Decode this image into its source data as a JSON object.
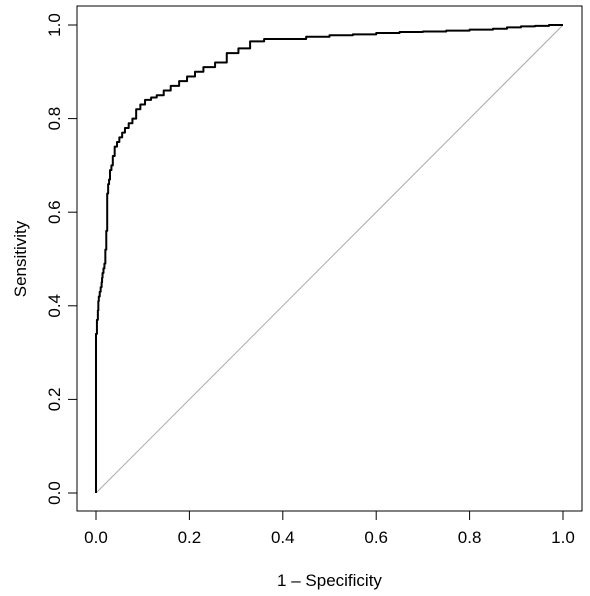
{
  "chart_data": {
    "type": "line",
    "title": "",
    "xlabel": "1 – Specificity",
    "ylabel": "Sensitivity",
    "xlim": [
      0,
      1
    ],
    "ylim": [
      0,
      1
    ],
    "x_ticks": [
      0.0,
      0.2,
      0.4,
      0.6,
      0.8,
      1.0
    ],
    "y_ticks": [
      0.0,
      0.2,
      0.4,
      0.6,
      0.8,
      1.0
    ],
    "x_tick_labels": [
      "0.0",
      "0.2",
      "0.4",
      "0.6",
      "0.8",
      "1.0"
    ],
    "y_tick_labels": [
      "0.0",
      "0.2",
      "0.4",
      "0.6",
      "0.8",
      "1.0"
    ],
    "grid": false,
    "legend": "none",
    "series": [
      {
        "role": "roc-curve",
        "color": "#000000",
        "x": [
          0.0,
          0.0,
          0.0,
          0.002,
          0.004,
          0.005,
          0.006,
          0.008,
          0.01,
          0.012,
          0.013,
          0.014,
          0.016,
          0.018,
          0.02,
          0.022,
          0.024,
          0.026,
          0.028,
          0.03,
          0.033,
          0.036,
          0.04,
          0.045,
          0.05,
          0.056,
          0.062,
          0.07,
          0.078,
          0.086,
          0.095,
          0.105,
          0.118,
          0.13,
          0.145,
          0.16,
          0.178,
          0.195,
          0.212,
          0.23,
          0.255,
          0.28,
          0.305,
          0.33,
          0.36,
          0.4,
          0.45,
          0.5,
          0.55,
          0.6,
          0.65,
          0.7,
          0.75,
          0.8,
          0.85,
          0.88,
          0.91,
          0.94,
          0.97,
          1.0
        ],
        "y": [
          0.0,
          0.33,
          0.34,
          0.37,
          0.39,
          0.41,
          0.42,
          0.43,
          0.44,
          0.45,
          0.46,
          0.47,
          0.48,
          0.49,
          0.52,
          0.56,
          0.64,
          0.66,
          0.67,
          0.69,
          0.7,
          0.72,
          0.74,
          0.75,
          0.76,
          0.77,
          0.78,
          0.79,
          0.8,
          0.82,
          0.83,
          0.84,
          0.845,
          0.85,
          0.86,
          0.87,
          0.88,
          0.89,
          0.9,
          0.91,
          0.92,
          0.94,
          0.95,
          0.965,
          0.97,
          0.97,
          0.975,
          0.978,
          0.98,
          0.983,
          0.985,
          0.986,
          0.988,
          0.99,
          0.992,
          0.995,
          0.997,
          0.998,
          1.0,
          1.0
        ]
      },
      {
        "role": "reference-diagonal",
        "color": "#aaaaaa",
        "x": [
          0,
          1
        ],
        "y": [
          0,
          1
        ]
      }
    ]
  }
}
